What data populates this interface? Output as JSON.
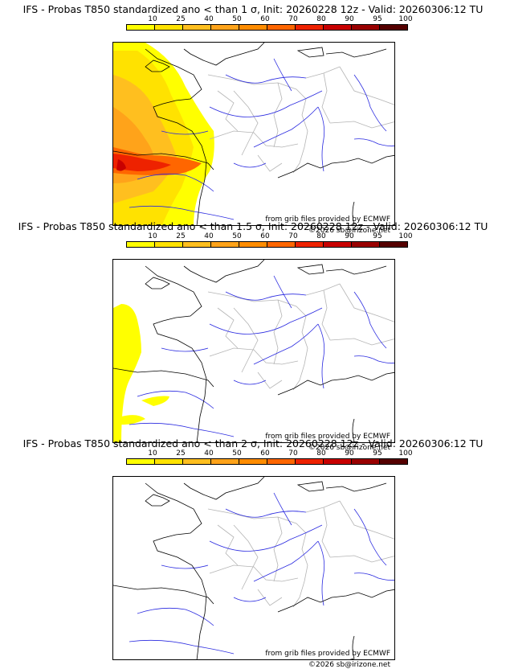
{
  "legend": {
    "labels": [
      "10",
      "25",
      "40",
      "50",
      "60",
      "70",
      "80",
      "90",
      "95",
      "100"
    ],
    "colors": [
      "#ffff00",
      "#ffe200",
      "#ffbf1f",
      "#ffa31a",
      "#ff8c00",
      "#ff6600",
      "#ee2200",
      "#c80000",
      "#990000",
      "#550000"
    ]
  },
  "panels": [
    {
      "title": "IFS - Probas T850  standardized ano < than 1 σ, Init: 20260228 12z - Valid: 20260306:12 TU",
      "level": "high"
    },
    {
      "title": "IFS - Probas T850  standardized ano < than 1.5 σ, Init: 20260228 12z - Valid: 20260306:12 TU",
      "level": "mid"
    },
    {
      "title": "IFS - Probas T850  standardized ano < than 2 σ, Init: 20260228 12z - Valid: 20260306:12 TU",
      "level": "none"
    }
  ],
  "credit": {
    "source": "from grib files provided by ECMWF",
    "copyright": "©2026 sb@irizone.net"
  },
  "map_colors": {
    "coast": "#000000",
    "rivers": "#2a2ae0",
    "borders": "#b4b4b4"
  }
}
